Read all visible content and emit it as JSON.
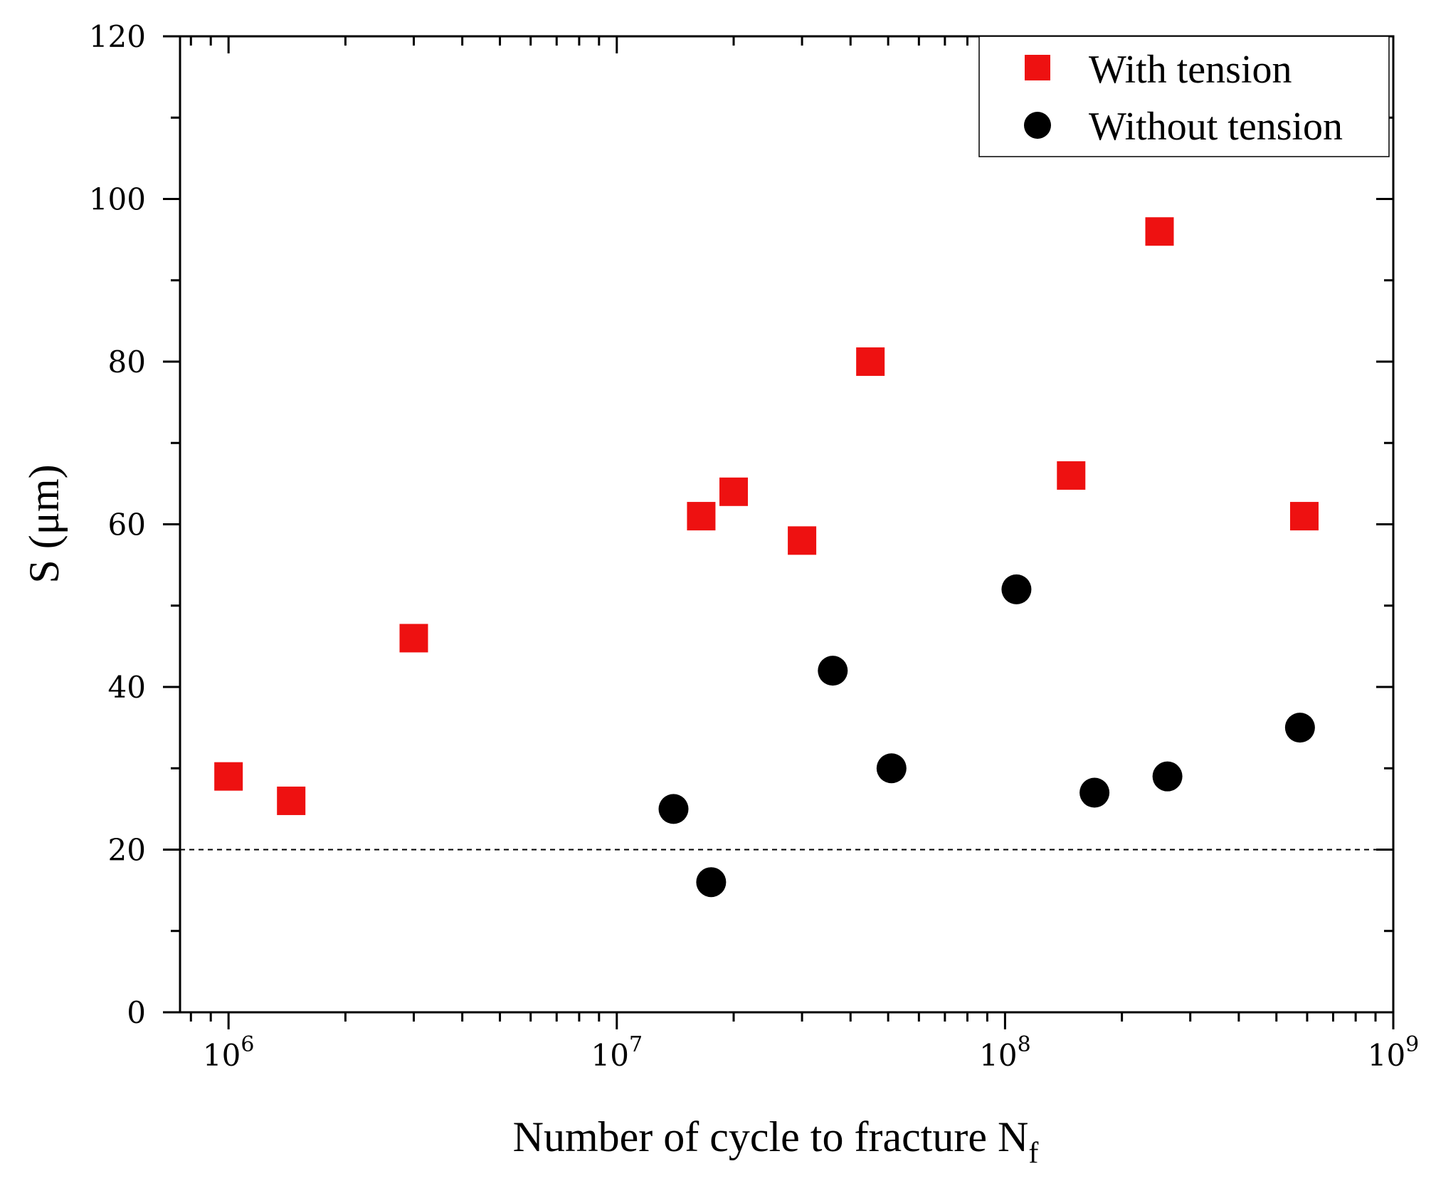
{
  "chart_data": {
    "type": "scatter",
    "title": "",
    "xlabel": "Number of cycle to fracture N",
    "xlabel_subscript": "f",
    "ylabel": "S (μm)",
    "xscale": "log",
    "xlim": [
      750000,
      1000000000
    ],
    "ylim": [
      0,
      120
    ],
    "x_ticks": [
      {
        "value": 1000000,
        "base": "10",
        "exp": "6"
      },
      {
        "value": 10000000,
        "base": "10",
        "exp": "7"
      },
      {
        "value": 100000000,
        "base": "10",
        "exp": "8"
      },
      {
        "value": 1000000000,
        "base": "10",
        "exp": "9"
      }
    ],
    "y_ticks": [
      {
        "value": 0,
        "label": "0"
      },
      {
        "value": 20,
        "label": "20"
      },
      {
        "value": 40,
        "label": "40"
      },
      {
        "value": 60,
        "label": "60"
      },
      {
        "value": 80,
        "label": "80"
      },
      {
        "value": 100,
        "label": "100"
      },
      {
        "value": 120,
        "label": "120"
      }
    ],
    "reference_line": {
      "y": 20,
      "style": "dashed"
    },
    "legend_position": "top-right",
    "series": [
      {
        "name": "With tension",
        "marker": "square",
        "color": "#ee1111",
        "points": [
          {
            "x": 1000000,
            "y": 29
          },
          {
            "x": 1450000,
            "y": 26
          },
          {
            "x": 3000000,
            "y": 46
          },
          {
            "x": 16500000,
            "y": 61
          },
          {
            "x": 20000000,
            "y": 64
          },
          {
            "x": 30000000,
            "y": 58
          },
          {
            "x": 45000000,
            "y": 80
          },
          {
            "x": 148000000,
            "y": 66
          },
          {
            "x": 250000000,
            "y": 96
          },
          {
            "x": 590000000,
            "y": 61
          }
        ]
      },
      {
        "name": "Without tension",
        "marker": "circle",
        "color": "#000000",
        "points": [
          {
            "x": 14000000,
            "y": 25
          },
          {
            "x": 17500000,
            "y": 16
          },
          {
            "x": 36000000,
            "y": 42
          },
          {
            "x": 51000000,
            "y": 30
          },
          {
            "x": 107000000,
            "y": 52
          },
          {
            "x": 170000000,
            "y": 27
          },
          {
            "x": 262000000,
            "y": 29
          },
          {
            "x": 575000000,
            "y": 35
          }
        ]
      }
    ]
  }
}
